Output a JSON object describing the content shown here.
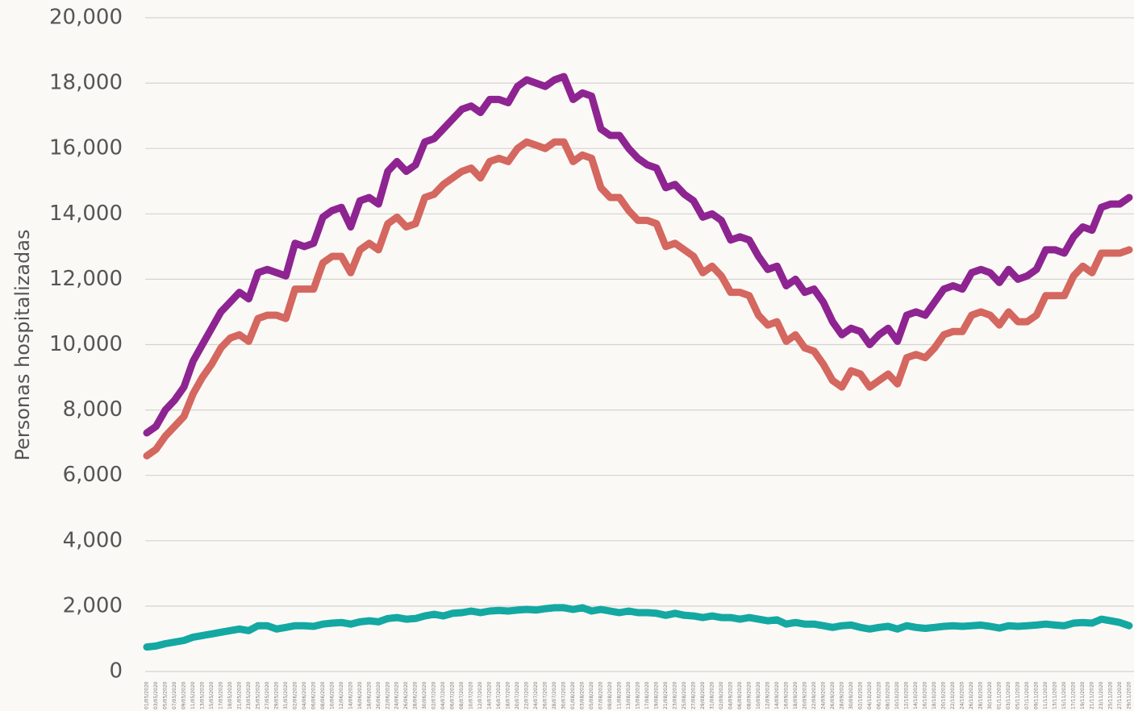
{
  "chart_data": {
    "type": "line",
    "y_label": "Personas hospitalizadas",
    "categories": [
      "01/05/2020",
      "03/05/2020",
      "05/05/2020",
      "07/05/2020",
      "09/05/2020",
      "11/05/2020",
      "13/05/2020",
      "15/05/2020",
      "17/05/2020",
      "19/05/2020",
      "21/05/2020",
      "23/05/2020",
      "25/05/2020",
      "27/05/2020",
      "29/05/2020",
      "31/05/2020",
      "02/06/2020",
      "04/06/2020",
      "06/06/2020",
      "08/06/2020",
      "10/06/2020",
      "12/06/2020",
      "14/06/2020",
      "16/06/2020",
      "18/06/2020",
      "20/06/2020",
      "22/06/2020",
      "24/06/2020",
      "26/06/2020",
      "28/06/2020",
      "30/06/2020",
      "02/07/2020",
      "04/07/2020",
      "06/07/2020",
      "08/07/2020",
      "10/07/2020",
      "12/07/2020",
      "14/07/2020",
      "16/07/2020",
      "18/07/2020",
      "20/07/2020",
      "22/07/2020",
      "24/07/2020",
      "26/07/2020",
      "28/07/2020",
      "30/07/2020",
      "01/08/2020",
      "03/08/2020",
      "05/08/2020",
      "07/08/2020",
      "09/08/2020",
      "11/08/2020",
      "13/08/2020",
      "15/08/2020",
      "17/08/2020",
      "19/08/2020",
      "21/08/2020",
      "23/08/2020",
      "25/08/2020",
      "27/08/2020",
      "29/08/2020",
      "31/08/2020",
      "02/09/2020",
      "04/09/2020",
      "06/09/2020",
      "08/09/2020",
      "10/09/2020",
      "12/09/2020",
      "14/09/2020",
      "16/09/2020",
      "18/09/2020",
      "20/09/2020",
      "22/09/2020",
      "24/09/2020",
      "26/09/2020",
      "28/09/2020",
      "30/09/2020",
      "02/10/2020",
      "04/10/2020",
      "06/10/2020",
      "08/10/2020",
      "10/10/2020",
      "12/10/2020",
      "14/10/2020",
      "16/10/2020",
      "18/10/2020",
      "20/10/2020",
      "22/10/2020",
      "24/10/2020",
      "26/10/2020",
      "28/10/2020",
      "30/10/2020",
      "01/11/2020",
      "03/11/2020",
      "05/11/2020",
      "07/11/2020",
      "09/11/2020",
      "11/11/2020",
      "13/11/2020",
      "15/11/2020",
      "17/11/2020",
      "19/11/2020",
      "21/11/2020",
      "23/11/2020",
      "25/11/2020",
      "27/11/2020",
      "29/11/2020"
    ],
    "series": [
      {
        "color": "#8e2491",
        "values": [
          7300,
          7500,
          8000,
          8300,
          8700,
          9500,
          10000,
          10500,
          11000,
          11300,
          11600,
          11400,
          12200,
          12300,
          12200,
          12100,
          13100,
          13000,
          13100,
          13900,
          14100,
          14200,
          13600,
          14400,
          14500,
          14300,
          15300,
          15600,
          15300,
          15500,
          16200,
          16300,
          16600,
          16900,
          17200,
          17300,
          17100,
          17500,
          17500,
          17400,
          17900,
          18100,
          18000,
          17900,
          18100,
          18200,
          17500,
          17700,
          17600,
          16600,
          16400,
          16400,
          16000,
          15700,
          15500,
          15400,
          14800,
          14900,
          14600,
          14400,
          13900,
          14000,
          13800,
          13200,
          13300,
          13200,
          12700,
          12300,
          12400,
          11800,
          12000,
          11600,
          11700,
          11300,
          10700,
          10300,
          10500,
          10400,
          10000,
          10300,
          10500,
          10100,
          10900,
          11000,
          10900,
          11300,
          11700,
          11800,
          11700,
          12200,
          12300,
          12200,
          11900,
          12300,
          12000,
          12100,
          12300,
          12900,
          12900,
          12800,
          13300,
          13600,
          13500,
          14200,
          14300,
          14300,
          14500
        ]
      },
      {
        "color": "#d4675f",
        "values": [
          6600,
          6800,
          7200,
          7500,
          7800,
          8500,
          9000,
          9400,
          9900,
          10200,
          10300,
          10100,
          10800,
          10900,
          10900,
          10800,
          11700,
          11700,
          11700,
          12500,
          12700,
          12700,
          12200,
          12900,
          13100,
          12900,
          13700,
          13900,
          13600,
          13700,
          14500,
          14600,
          14900,
          15100,
          15300,
          15400,
          15100,
          15600,
          15700,
          15600,
          16000,
          16200,
          16100,
          16000,
          16200,
          16200,
          15600,
          15800,
          15700,
          14800,
          14500,
          14500,
          14100,
          13800,
          13800,
          13700,
          13000,
          13100,
          12900,
          12700,
          12200,
          12400,
          12100,
          11600,
          11600,
          11500,
          10900,
          10600,
          10700,
          10100,
          10300,
          9900,
          9800,
          9400,
          8900,
          8700,
          9200,
          9100,
          8700,
          8900,
          9100,
          8800,
          9600,
          9700,
          9600,
          9900,
          10300,
          10400,
          10400,
          10900,
          11000,
          10900,
          10600,
          11000,
          10700,
          10700,
          10900,
          11500,
          11500,
          11500,
          12100,
          12400,
          12200,
          12800,
          12800,
          12800,
          12900
        ]
      },
      {
        "color": "#14a8a2",
        "values": [
          750,
          780,
          850,
          900,
          950,
          1050,
          1100,
          1150,
          1200,
          1250,
          1300,
          1250,
          1400,
          1400,
          1300,
          1350,
          1400,
          1400,
          1380,
          1450,
          1480,
          1500,
          1450,
          1520,
          1550,
          1520,
          1620,
          1650,
          1600,
          1620,
          1700,
          1750,
          1700,
          1780,
          1800,
          1850,
          1800,
          1850,
          1870,
          1850,
          1880,
          1900,
          1880,
          1920,
          1950,
          1950,
          1900,
          1950,
          1850,
          1900,
          1850,
          1800,
          1850,
          1800,
          1800,
          1780,
          1720,
          1780,
          1720,
          1700,
          1650,
          1700,
          1650,
          1650,
          1600,
          1650,
          1600,
          1550,
          1580,
          1450,
          1500,
          1450,
          1450,
          1400,
          1350,
          1400,
          1420,
          1350,
          1300,
          1350,
          1380,
          1300,
          1400,
          1350,
          1320,
          1350,
          1380,
          1400,
          1380,
          1400,
          1420,
          1380,
          1330,
          1400,
          1380,
          1400,
          1420,
          1450,
          1420,
          1400,
          1480,
          1500,
          1480,
          1600,
          1550,
          1500,
          1400
        ]
      }
    ],
    "ylim": [
      0,
      20000
    ],
    "yticks": [
      0,
      {
        "value": 2000,
        "label": "2,000"
      },
      {
        "value": 4000,
        "label": "4,000"
      },
      {
        "value": 6000,
        "label": "6,000"
      },
      {
        "value": 8000,
        "label": "8,000"
      },
      {
        "value": 10000,
        "label": "10,000"
      },
      {
        "value": 12000,
        "label": "12,000"
      },
      {
        "value": 14000,
        "label": "14,000"
      },
      {
        "value": 16000,
        "label": "16,000"
      },
      {
        "value": 18000,
        "label": "18,000"
      },
      {
        "value": 20000,
        "label": "20,000"
      }
    ],
    "grid": true
  }
}
